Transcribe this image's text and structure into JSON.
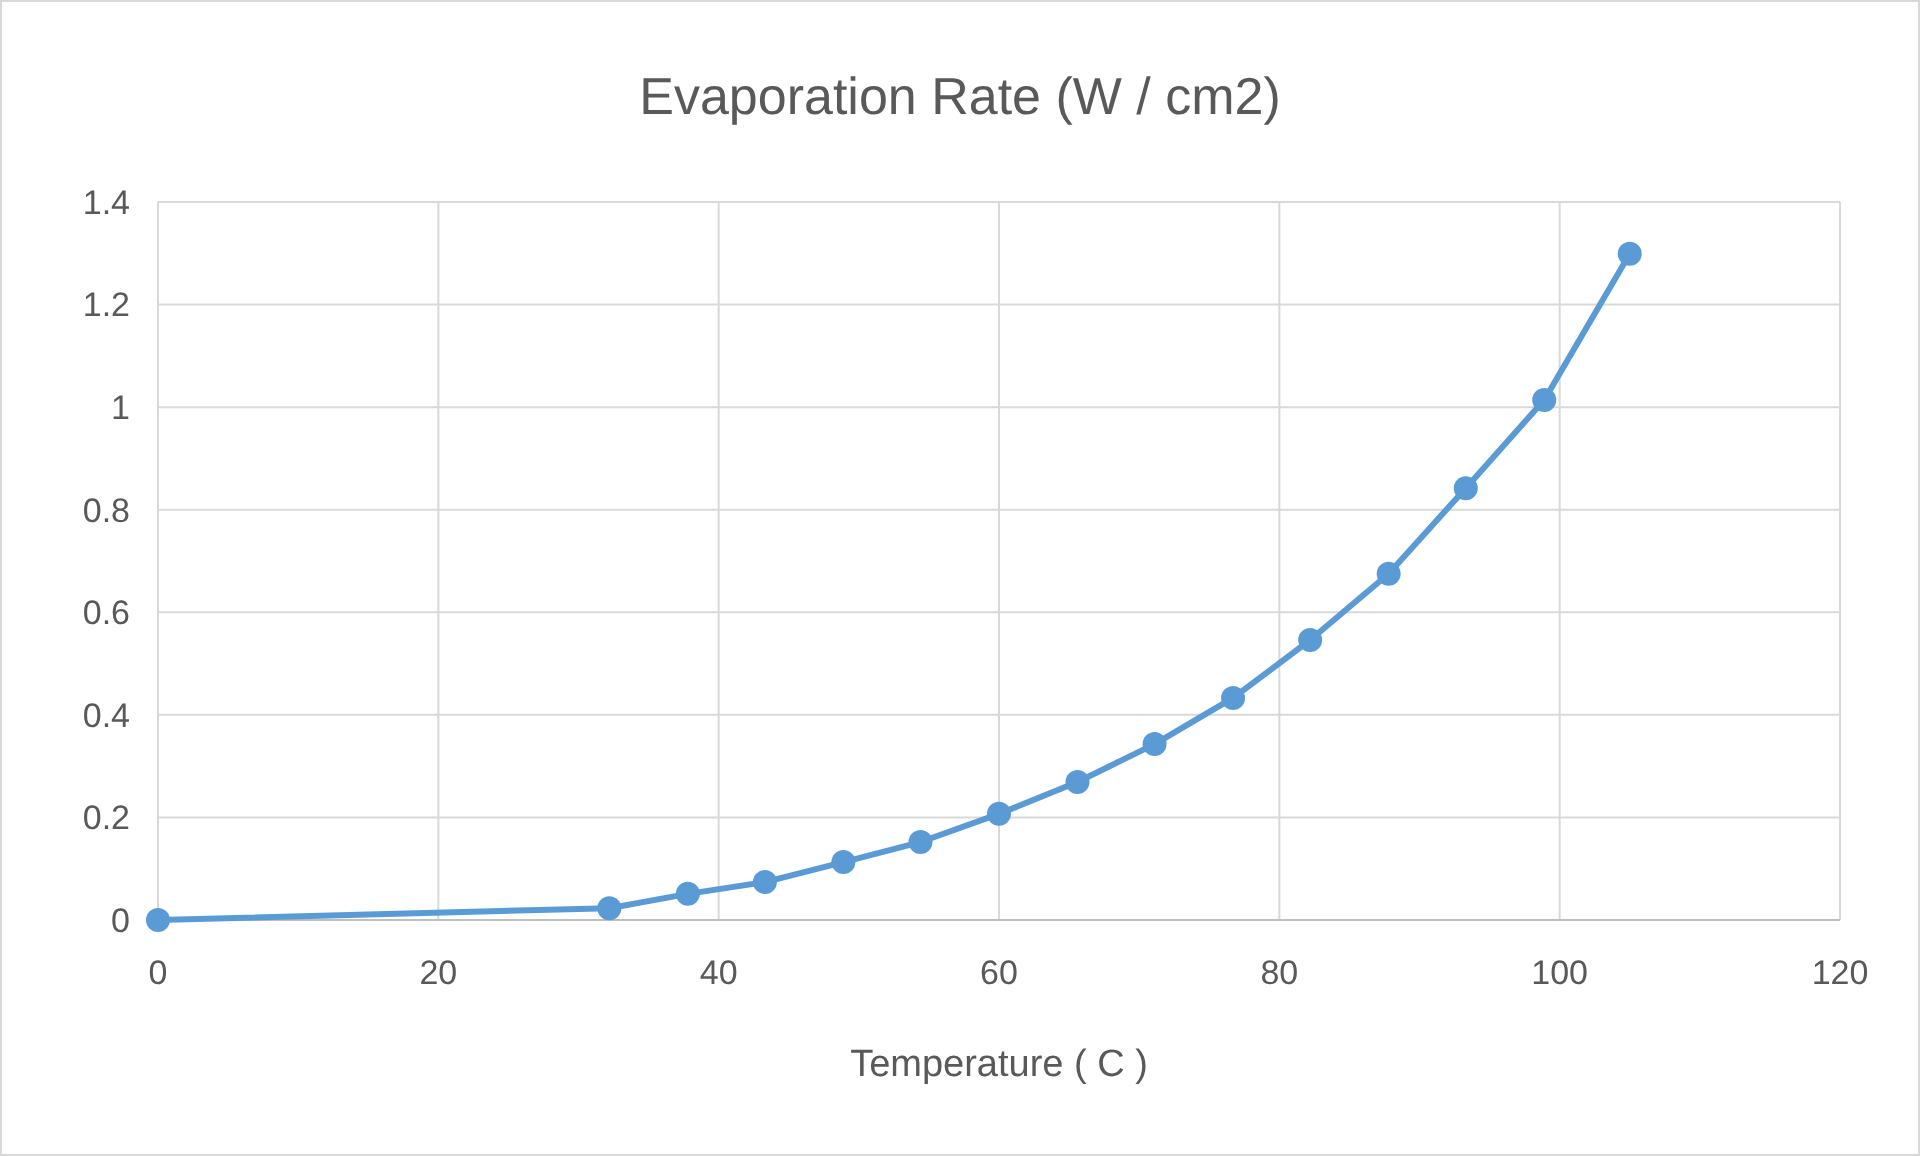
{
  "chart_data": {
    "type": "line",
    "title": "Evaporation Rate (W / cm2)",
    "xlabel": "Temperature ( C )",
    "x": [
      0,
      32.2,
      37.8,
      43.3,
      48.9,
      54.4,
      60,
      65.6,
      71.1,
      76.7,
      82.2,
      87.8,
      93.3,
      98.9,
      105
    ],
    "series": [
      {
        "color": "#5b9bd5",
        "values": [
          0,
          0.023,
          0.051,
          0.074,
          0.113,
          0.152,
          0.207,
          0.269,
          0.343,
          0.433,
          0.546,
          0.675,
          0.842,
          1.014,
          1.299
        ]
      }
    ],
    "xlim": [
      0,
      120
    ],
    "xticks": [
      0,
      20,
      40,
      60,
      80,
      100,
      120
    ],
    "ylim": [
      0,
      1.4
    ],
    "yticks": [
      0,
      0.2,
      0.4,
      0.6,
      0.8,
      1,
      1.2,
      1.4
    ],
    "grid": true,
    "marker": "circle",
    "line_style": "solid"
  }
}
